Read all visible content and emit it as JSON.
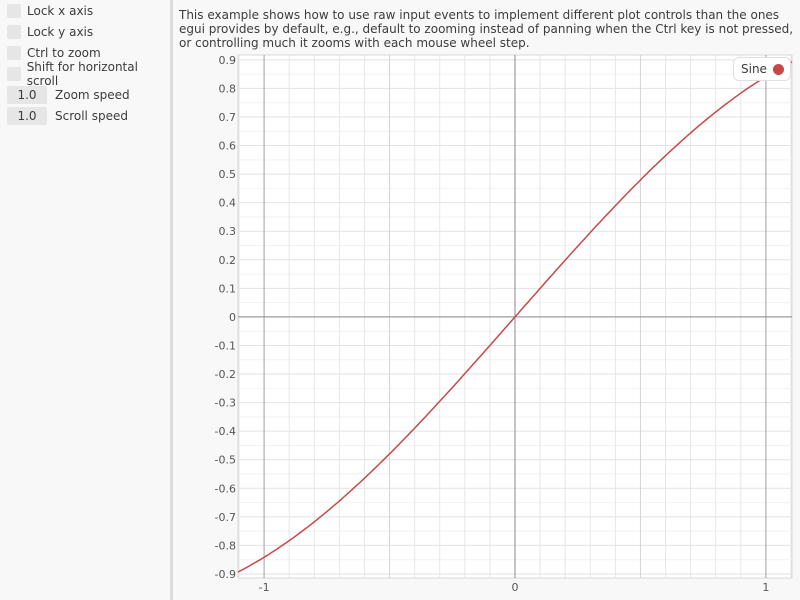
{
  "sidebar": {
    "checkboxes": [
      {
        "label": "Lock x axis",
        "checked": false
      },
      {
        "label": "Lock y axis",
        "checked": false
      },
      {
        "label": "Ctrl to zoom",
        "checked": false
      },
      {
        "label": "Shift for horizontal scroll",
        "checked": false
      }
    ],
    "fields": [
      {
        "value": "1.0",
        "label": "Zoom speed"
      },
      {
        "value": "1.0",
        "label": "Scroll speed"
      }
    ]
  },
  "description": "This example shows how to use raw input events to implement different plot controls than the ones egui provides by default, e.g., default to zooming instead of panning when the Ctrl key is not pressed, or controlling much it zooms with each mouse wheel step.",
  "chart_data": {
    "type": "line",
    "function": "sin(x)",
    "series": [
      {
        "name": "Sine",
        "color": "#c84848"
      }
    ],
    "xlim": [
      -1.104,
      1.104
    ],
    "ylim": [
      -0.914,
      0.917
    ],
    "x_ticks": [
      "-1",
      "0",
      "1"
    ],
    "y_ticks": [
      "0.9",
      "0.8",
      "0.7",
      "0.6",
      "0.5",
      "0.4",
      "0.3",
      "0.2",
      "0.1",
      "0",
      "-0.1",
      "-0.2",
      "-0.3",
      "-0.4",
      "-0.5",
      "-0.6",
      "-0.7",
      "-0.8",
      "-0.9"
    ],
    "grid": true,
    "legend_position": "top-right"
  }
}
